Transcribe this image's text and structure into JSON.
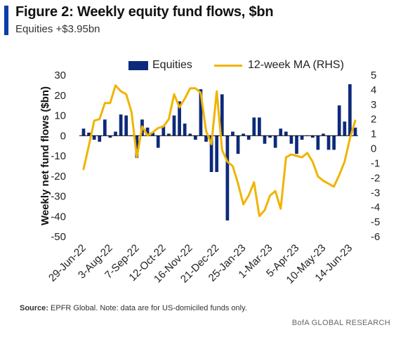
{
  "header": {
    "title": "Figure 2: Weekly equity fund flows, $bn",
    "subtitle": "Equities +$3.95bn"
  },
  "footer": {
    "source_label": "Source:",
    "source_text": "EPFR Global. Note: data are for US-domiciled funds only.",
    "brand": "BofA GLOBAL RESEARCH"
  },
  "colors": {
    "accent": "#0a3ea8",
    "bars": "#0d2a7a",
    "line": "#f0b400"
  },
  "chart_data": {
    "type": "bar",
    "ylabel": "Weekly net fund flows ($bn)",
    "ylim": [
      -50,
      30
    ],
    "y2lim": [
      -6,
      5
    ],
    "yticks": [
      30,
      20,
      10,
      0,
      -10,
      -20,
      -30,
      -40,
      -50
    ],
    "y2ticks": [
      5,
      4,
      3,
      2,
      1,
      0,
      -1,
      -2,
      -3,
      -4,
      -5,
      -6
    ],
    "xticks": [
      "29-Jun-22",
      "3-Aug-22",
      "7-Sep-22",
      "12-Oct-22",
      "16-Nov-22",
      "21-Dec-22",
      "25-Jan-23",
      "1-Mar-23",
      "5-Apr-23",
      "10-May-23",
      "14-Jun-23"
    ],
    "xtick_index": [
      0,
      5,
      10,
      15,
      20,
      25,
      30,
      35,
      40,
      45,
      50
    ],
    "legend_position": "top",
    "series": [
      {
        "name": "Equities",
        "axis": "left",
        "values": [
          3.5,
          1.5,
          -2,
          -3,
          8,
          -1,
          2,
          10.5,
          10,
          0,
          -11,
          8,
          4,
          1.5,
          -6,
          5,
          1,
          10,
          17,
          6,
          1,
          -2,
          23,
          -3,
          -18,
          -18,
          20.5,
          -42,
          2,
          -9,
          1,
          -2,
          9,
          9,
          -4,
          -1,
          -6,
          3.5,
          2,
          -4,
          -9,
          -2,
          0,
          -1,
          -7,
          1,
          -7,
          -7,
          15,
          7,
          25.5,
          4
        ]
      },
      {
        "name": "12-week MA (RHS)",
        "axis": "right",
        "values": [
          -1.4,
          0.2,
          1.9,
          2.0,
          3.1,
          3.1,
          4.3,
          3.9,
          3.7,
          2.5,
          -0.6,
          1.5,
          0.9,
          1.1,
          1.4,
          1.5,
          2.0,
          3.7,
          2.8,
          3.4,
          4.1,
          4.1,
          3.8,
          1.2,
          0.3,
          3.9,
          -0.1,
          -0.9,
          -1.2,
          -2.4,
          -3.8,
          -3.2,
          -2.3,
          -4.6,
          -4.2,
          -3.2,
          -2.9,
          -4.1,
          -0.6,
          -0.4,
          -0.5,
          -0.6,
          -0.3,
          -0.9,
          -1.9,
          -2.2,
          -2.4,
          -2.6,
          -1.8,
          -0.9,
          0.7,
          1.9
        ]
      }
    ]
  }
}
